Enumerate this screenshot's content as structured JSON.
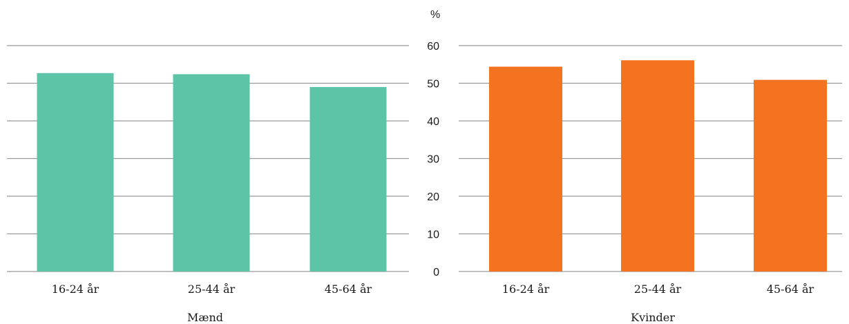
{
  "chart_data": [
    {
      "type": "bar",
      "title": "Mænd",
      "categories": [
        "16-24 år",
        "25-44 år",
        "45-64 år"
      ],
      "values": [
        52.7,
        52.4,
        49.0
      ],
      "ylim": [
        0,
        60
      ],
      "yticks": [
        0,
        10,
        20,
        30,
        40,
        50,
        60
      ],
      "ytick_labels_visible": false,
      "grid": true,
      "color": "#5dc4a7"
    },
    {
      "type": "bar",
      "title": "Kvinder",
      "categories": [
        "16-24 år",
        "25-44 år",
        "45-64 år"
      ],
      "values": [
        54.4,
        56.1,
        50.9
      ],
      "ylim": [
        0,
        60
      ],
      "yticks": [
        0,
        10,
        20,
        30,
        40,
        50,
        60
      ],
      "ytick_labels_visible": true,
      "ylabel": "%",
      "grid": true,
      "color": "#f37321"
    }
  ]
}
